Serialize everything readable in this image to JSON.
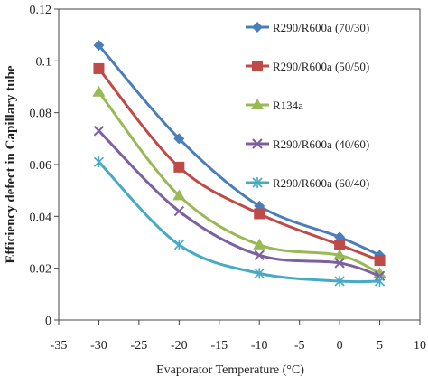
{
  "chart_data": {
    "type": "line",
    "title": "",
    "xlabel": "Evaporator Temperature (°C)",
    "ylabel": "Efficiency defect in Capillary tube",
    "xlim": [
      -35,
      10
    ],
    "ylim": [
      0,
      0.12
    ],
    "x_ticks": [
      -35,
      -30,
      -25,
      -20,
      -15,
      -10,
      -5,
      0,
      5,
      10
    ],
    "x_tick_labels": [
      "-35",
      "-30",
      "-25",
      "-20",
      "-15",
      "-10",
      "-5",
      "0",
      "5",
      "10"
    ],
    "y_ticks": [
      0,
      0.02,
      0.04,
      0.06,
      0.08,
      0.1,
      0.12
    ],
    "y_tick_labels": [
      "0",
      "0.02",
      "0.04",
      "0.06",
      "0.08",
      "0.1",
      "0.12"
    ],
    "grid": false,
    "legend": "right",
    "x": [
      -30,
      -20,
      -10,
      0,
      5
    ],
    "series": [
      {
        "name": "R290/R600a (70/30)",
        "color": "#4a7ebb",
        "marker": "diamond",
        "values": [
          0.106,
          0.07,
          0.044,
          0.032,
          0.025
        ]
      },
      {
        "name": "R290/R600a (50/50)",
        "color": "#be4b48",
        "marker": "square",
        "values": [
          0.097,
          0.059,
          0.041,
          0.029,
          0.023
        ]
      },
      {
        "name": "R134a",
        "color": "#98b954",
        "marker": "triangle",
        "values": [
          0.088,
          0.048,
          0.029,
          0.025,
          0.018
        ]
      },
      {
        "name": "R290/R600a (40/60)",
        "color": "#7d60a0",
        "marker": "x",
        "values": [
          0.073,
          0.042,
          0.025,
          0.022,
          0.017
        ]
      },
      {
        "name": "R290/R600a (60/40)",
        "color": "#46aac5",
        "marker": "star",
        "values": [
          0.061,
          0.029,
          0.018,
          0.015,
          0.015
        ]
      }
    ]
  }
}
